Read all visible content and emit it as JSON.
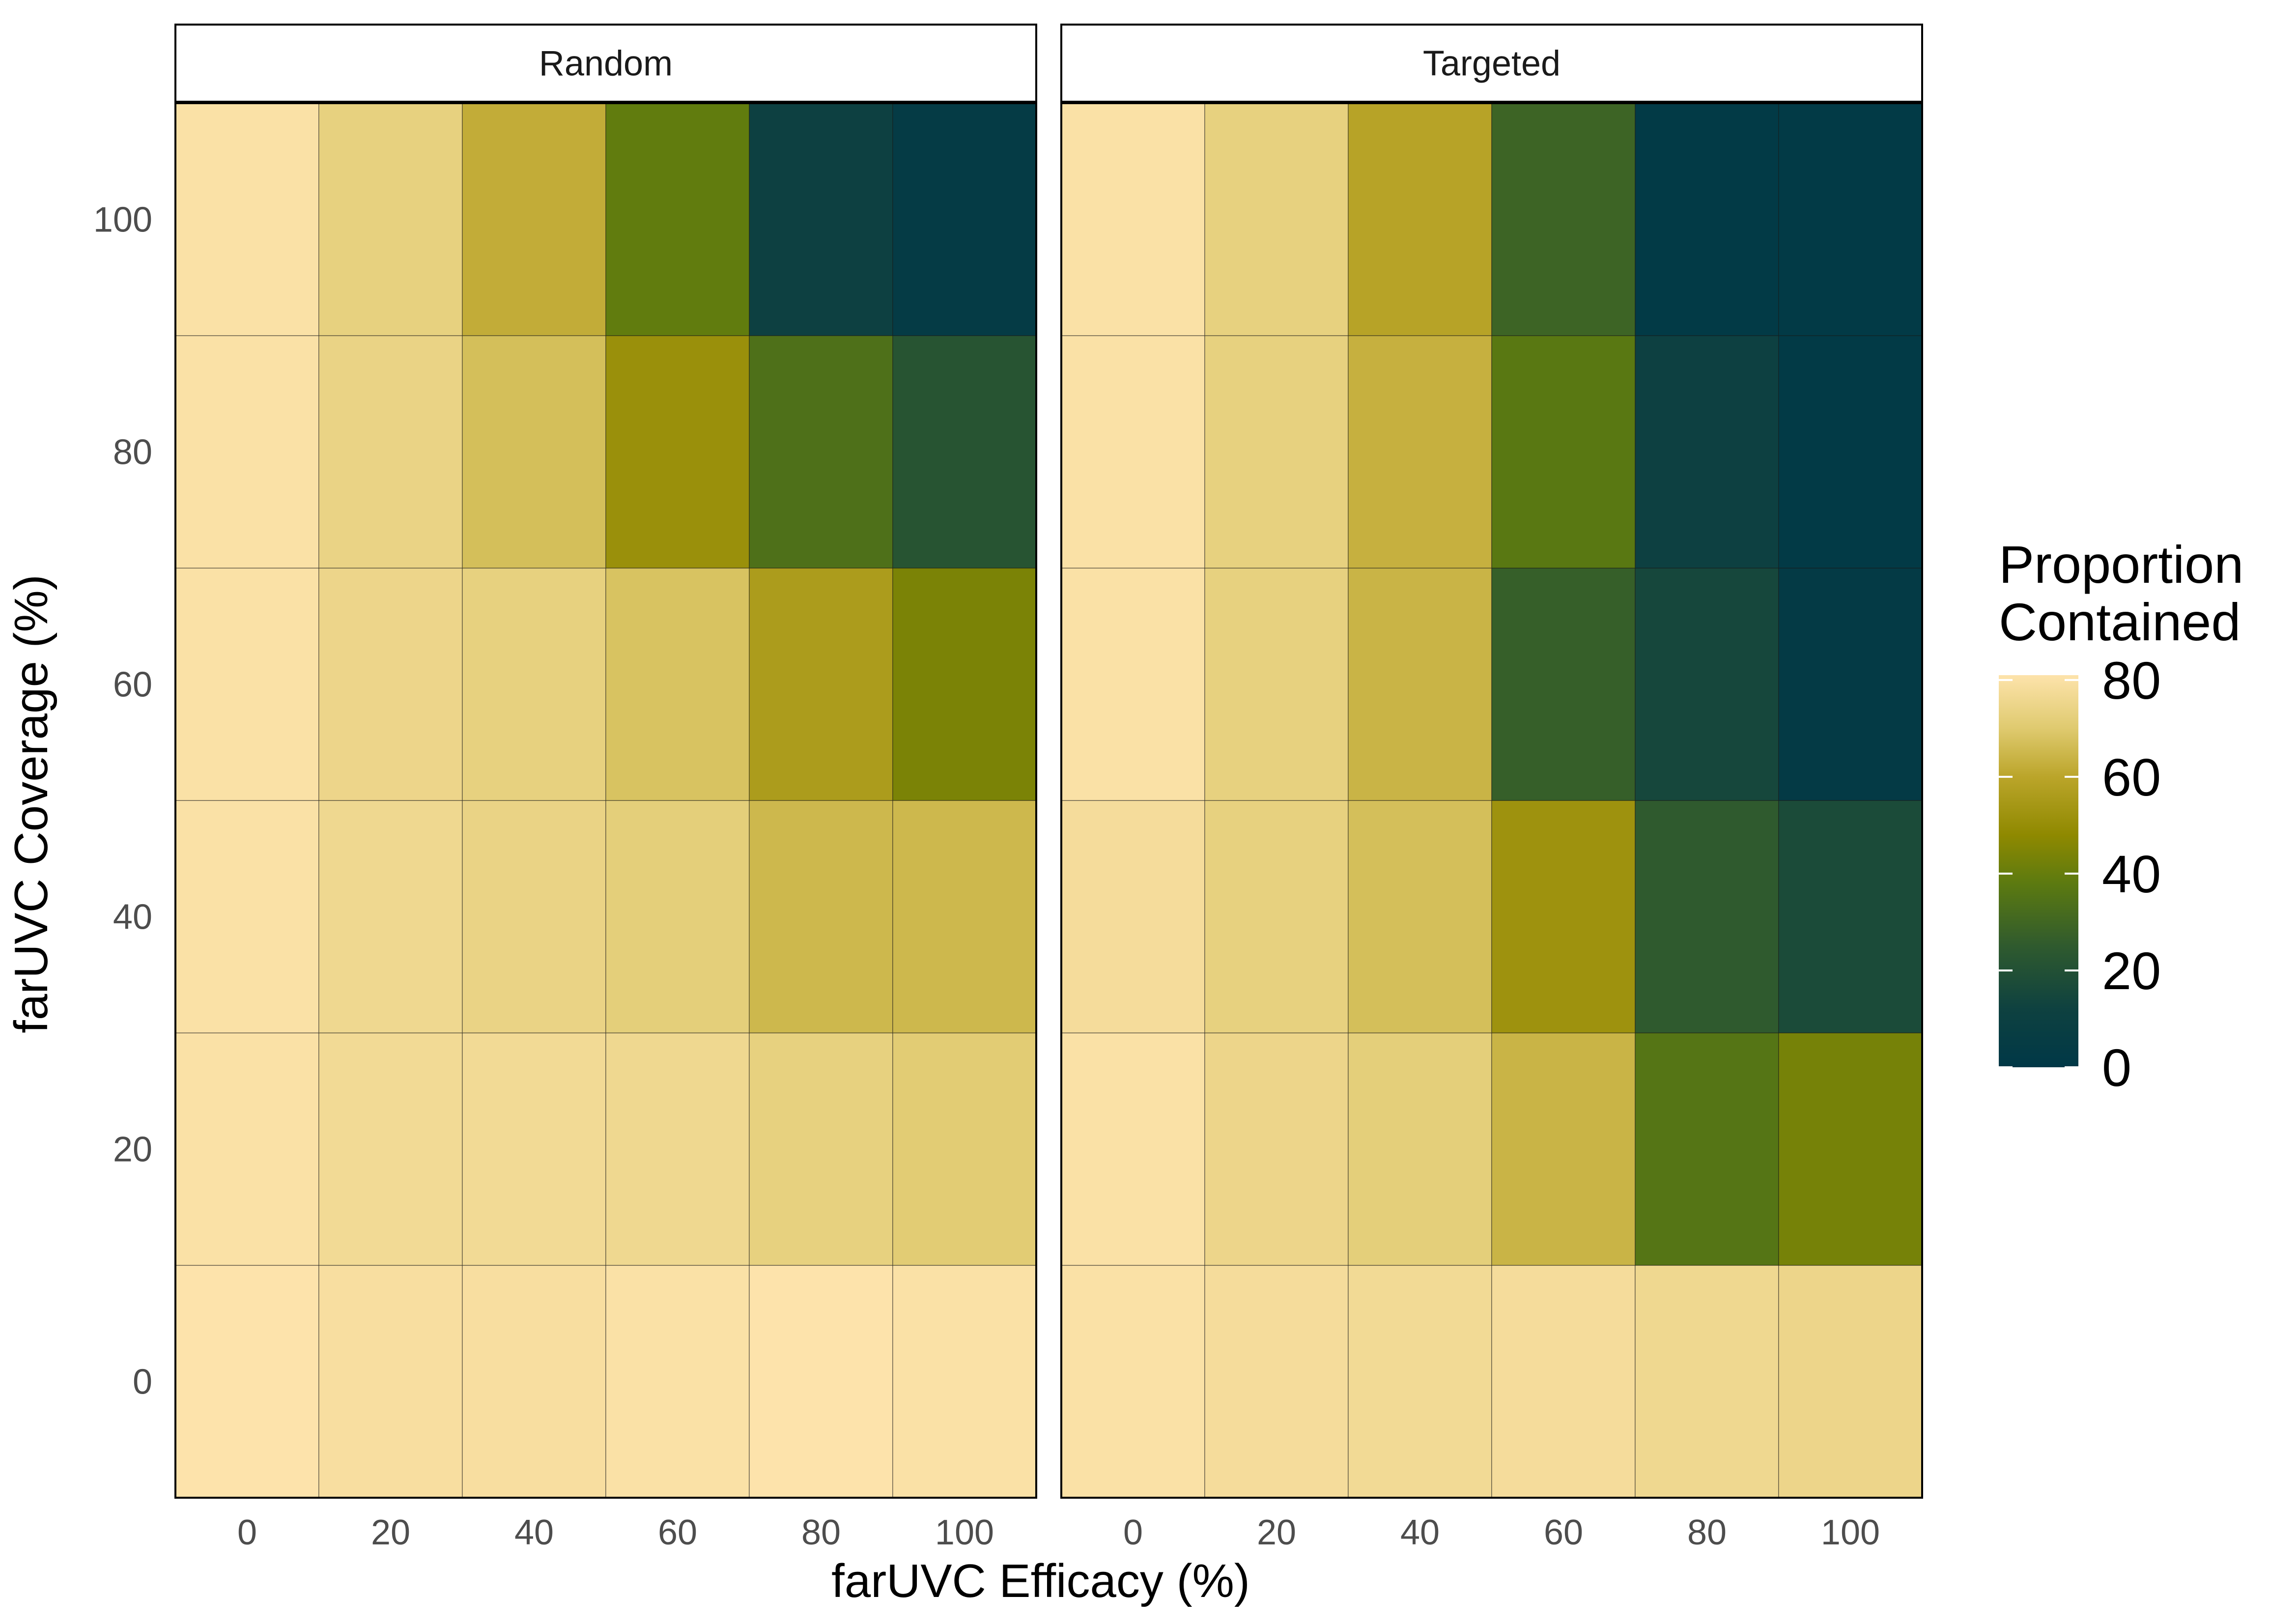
{
  "chart_data": {
    "type": "heatmap",
    "facets": [
      "Random",
      "Targeted"
    ],
    "x_values": [
      0,
      20,
      40,
      60,
      80,
      100
    ],
    "y_values": [
      0,
      20,
      40,
      60,
      80,
      100
    ],
    "xlabel": "farUVC Efficacy (%)",
    "ylabel": "farUVC Coverage (%)",
    "x_tick_labels": [
      "0",
      "20",
      "40",
      "60",
      "80",
      "100"
    ],
    "y_tick_labels": [
      "0",
      "20",
      "40",
      "60",
      "80",
      "100"
    ],
    "legend": {
      "title": [
        "Proportion",
        "Contained"
      ],
      "ticks": [
        80,
        60,
        40,
        20,
        0
      ],
      "range": [
        0,
        81
      ],
      "position": "right"
    },
    "colorscale": [
      {
        "v": 0,
        "color": "#003847"
      },
      {
        "v": 12,
        "color": "#0e4140"
      },
      {
        "v": 25,
        "color": "#2f5a2e"
      },
      {
        "v": 38,
        "color": "#5c7a10"
      },
      {
        "v": 48,
        "color": "#8f8900"
      },
      {
        "v": 60,
        "color": "#bba52a"
      },
      {
        "v": 70,
        "color": "#dfca6f"
      },
      {
        "v": 81,
        "color": "#fde3ab"
      }
    ],
    "series": [
      {
        "name": "Random",
        "z": [
          [
            81,
            79,
            79,
            80,
            81,
            80
          ],
          [
            80,
            77,
            77,
            76,
            73,
            71
          ],
          [
            80,
            76,
            74,
            72,
            65,
            65
          ],
          [
            80,
            75,
            73,
            68,
            56,
            44
          ],
          [
            80,
            74,
            67,
            51,
            34,
            22
          ],
          [
            80,
            73,
            62,
            39,
            11,
            4
          ]
        ]
      },
      {
        "name": "Targeted",
        "z": [
          [
            80,
            78,
            77,
            78,
            76,
            75
          ],
          [
            80,
            75,
            72,
            64,
            36,
            43
          ],
          [
            78,
            73,
            67,
            52,
            25,
            17
          ],
          [
            80,
            73,
            64,
            27,
            15,
            3
          ],
          [
            80,
            73,
            63,
            37,
            11,
            2
          ],
          [
            80,
            73,
            59,
            29,
            2,
            2
          ]
        ]
      }
    ]
  }
}
